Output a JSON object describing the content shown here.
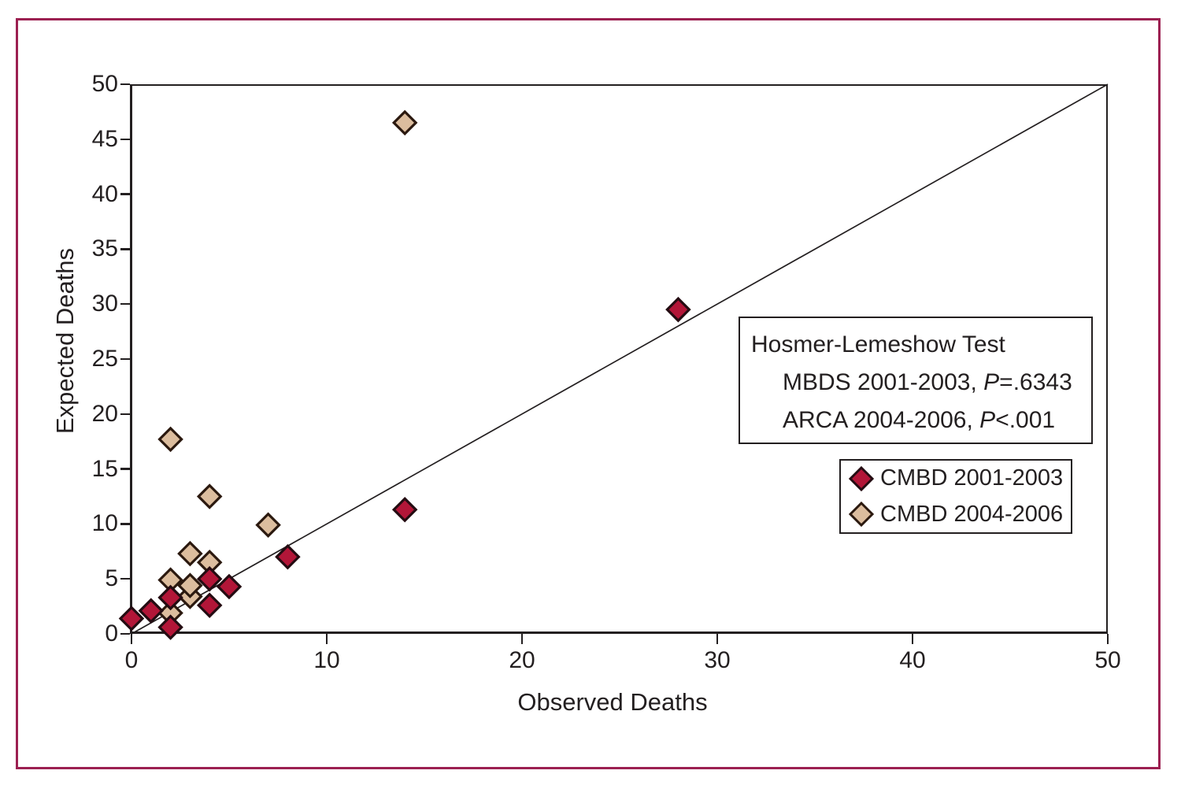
{
  "figure": {
    "border_color": "#9c2051",
    "background": "#ffffff"
  },
  "chart_data": {
    "type": "scatter",
    "title": "",
    "xlabel": "Observed Deaths",
    "ylabel": "Expected Deaths",
    "xlim": [
      0,
      50
    ],
    "ylim": [
      0,
      50
    ],
    "xticks": [
      0,
      10,
      20,
      30,
      40,
      50
    ],
    "yticks": [
      0,
      5,
      10,
      15,
      20,
      25,
      30,
      35,
      40,
      45,
      50
    ],
    "grid": false,
    "identity_line": {
      "from": [
        0,
        0
      ],
      "to": [
        50,
        50
      ],
      "color": "#231f20"
    },
    "series": [
      {
        "name": "CMBD 2004-2006",
        "marker": "diamond",
        "fill": "#dcbd9e",
        "stroke": "#2b190f",
        "points": [
          [
            2,
            1.9
          ],
          [
            3,
            3.4
          ],
          [
            2,
            4.9
          ],
          [
            3,
            4.4
          ],
          [
            4,
            6.5
          ],
          [
            3,
            7.3
          ],
          [
            7,
            9.9
          ],
          [
            4,
            12.5
          ],
          [
            2,
            17.7
          ],
          [
            14,
            46.5
          ]
        ]
      },
      {
        "name": "CMBD 2001-2003",
        "marker": "diamond",
        "fill": "#b21638",
        "stroke": "#240c12",
        "points": [
          [
            0,
            1.4
          ],
          [
            1,
            2.1
          ],
          [
            2,
            0.6
          ],
          [
            2,
            3.3
          ],
          [
            4,
            2.6
          ],
          [
            4,
            5.0
          ],
          [
            5,
            4.3
          ],
          [
            8,
            7.0
          ],
          [
            14,
            11.3
          ],
          [
            28,
            29.5
          ]
        ]
      }
    ],
    "legend": {
      "position": "lower-right",
      "items": [
        {
          "label": "CMBD 2001-2003",
          "fill": "#b21638",
          "stroke": "#240c12"
        },
        {
          "label": "CMBD 2004-2006",
          "fill": "#dcbd9e",
          "stroke": "#2b190f"
        }
      ]
    },
    "annotation": {
      "title": "Hosmer-Lemeshow Test",
      "line1": {
        "pre": "MBDS 2001-2003, ",
        "italic": "P",
        "post": "=.6343"
      },
      "line2": {
        "pre": "ARCA 2004-2006, ",
        "italic": "P",
        "post": "<.001"
      }
    }
  }
}
